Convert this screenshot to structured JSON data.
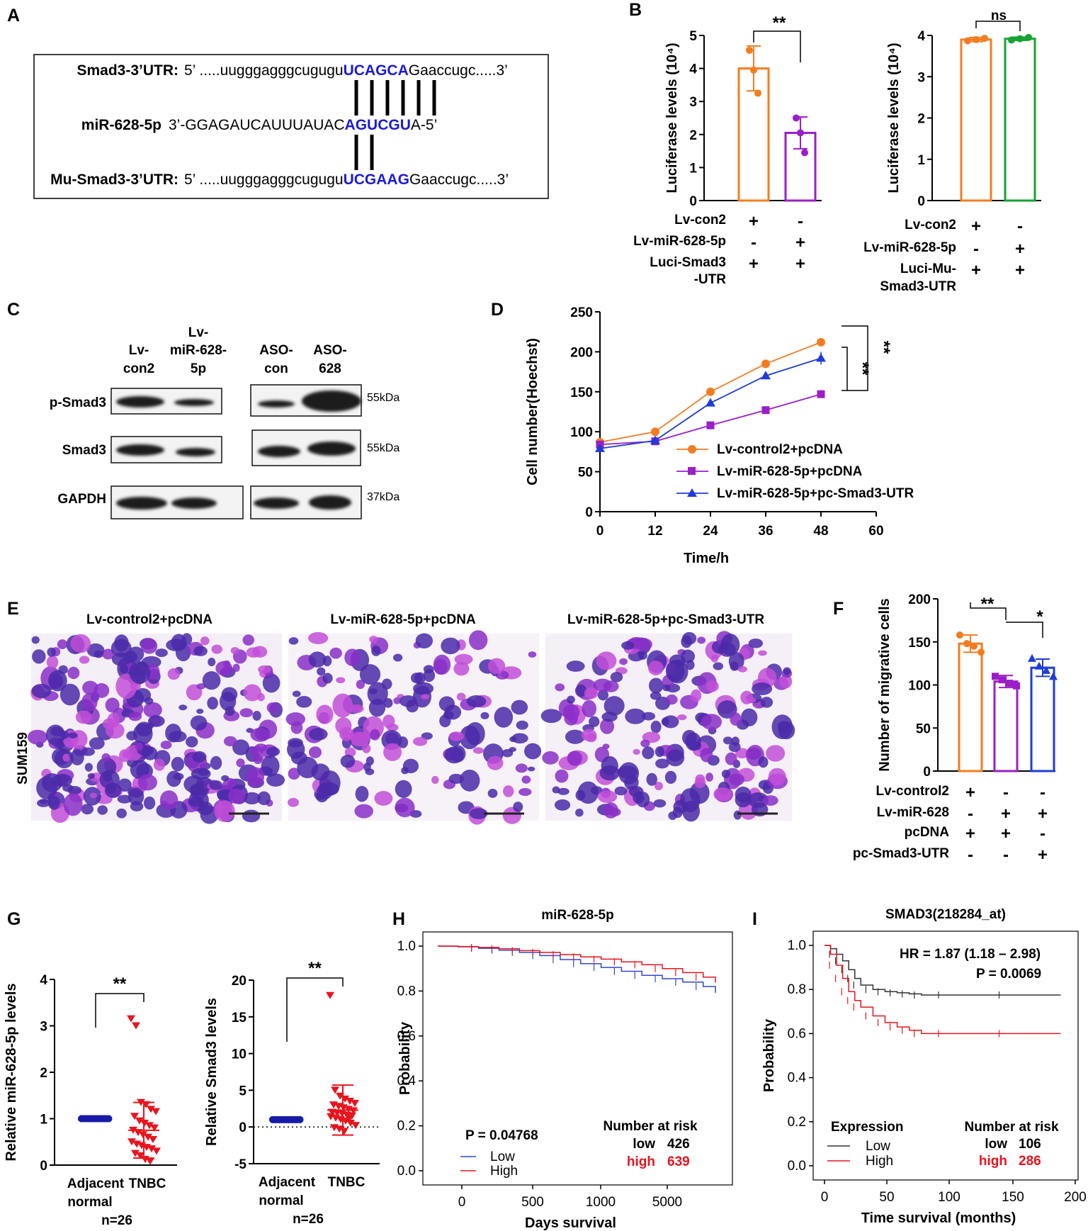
{
  "panels": [
    "A",
    "B",
    "C",
    "D",
    "E",
    "F",
    "G",
    "H",
    "I"
  ],
  "colors": {
    "orange": "#f47c20",
    "purple": "#9b1ec8",
    "green": "#16a332",
    "blue": "#1f3cd8",
    "red": "#e8141e",
    "navy": "#1a1adc",
    "gray": "#444444"
  },
  "panelA": {
    "rows": [
      {
        "label": "Smad3-3’UTR:",
        "left": "5’ .....uugggagggcugugu",
        "site": "UCAGCA",
        "right": "Gaaccugc.....3’"
      },
      {
        "label": "miR-628-5p",
        "left": "3’-GGAGAUCAUUUAUAC",
        "site": "AGUCGU",
        "right": "A-5’"
      },
      {
        "label": "Mu-Smad3-3’UTR:",
        "left": "5’ .....uugggagggcugugu",
        "site": "UCGAAG",
        "right": "Gaaccugc.....3’"
      }
    ]
  },
  "panelC": {
    "left_lanes": [
      [
        "Lv-",
        "con2"
      ],
      [
        "Lv-",
        "miR-628-",
        "5p"
      ]
    ],
    "right_lanes": [
      [
        "ASO-",
        "con"
      ],
      [
        "ASO-",
        "628"
      ]
    ],
    "rows": [
      "p-Smad3",
      "Smad3",
      "GAPDH"
    ],
    "kda": [
      "55kDa",
      "55kDa",
      "37kDa"
    ]
  },
  "panelE": {
    "titles": [
      "Lv-control2+pcDNA",
      "Lv-miR-628-5p+pcDNA",
      "Lv-miR-628-5p+pc-Smad3-UTR"
    ],
    "side_label": "SUM159"
  },
  "chart_data": [
    {
      "id": "B1",
      "type": "bar",
      "ylabel": "Luciferase levels (10⁴)",
      "ylim": [
        0,
        5
      ],
      "yticks": [
        "0",
        "1",
        "2",
        "3",
        "4",
        "5"
      ],
      "values": [
        4.0,
        2.05
      ],
      "errors": [
        0.68,
        0.48
      ],
      "points": [
        [
          4.55,
          3.95,
          3.25
        ],
        [
          2.5,
          2.05,
          1.45
        ]
      ],
      "colors": [
        "#f47c20",
        "#9b1ec8"
      ],
      "significance": "**",
      "conditions": [
        {
          "label": "Lv-con2",
          "signs": [
            "+",
            "-"
          ]
        },
        {
          "label": "Lv-miR-628-5p",
          "signs": [
            "-",
            "+"
          ]
        },
        {
          "label": "Luci-Smad3",
          "signs": [
            "+",
            "+"
          ]
        },
        {
          "label": "-UTR",
          "signs": [
            "",
            ""
          ]
        }
      ]
    },
    {
      "id": "B2",
      "type": "bar",
      "ylabel": "Luciferase levels (10⁴)",
      "ylim": [
        0,
        4
      ],
      "yticks": [
        "0",
        "1",
        "2",
        "3",
        "4"
      ],
      "values": [
        3.9,
        3.92
      ],
      "errors": [
        0.05,
        0.04
      ],
      "points": [
        [
          3.87,
          3.9,
          3.93
        ],
        [
          3.89,
          3.92,
          3.95
        ]
      ],
      "colors": [
        "#f47c20",
        "#16a332"
      ],
      "significance": "ns",
      "conditions": [
        {
          "label": "Lv-con2",
          "signs": [
            "+",
            "-"
          ]
        },
        {
          "label": "Lv-miR-628-5p",
          "signs": [
            "-",
            "+"
          ]
        },
        {
          "label": "Luci-Mu-",
          "signs": [
            "+",
            "+"
          ]
        },
        {
          "label": "Smad3-UTR",
          "signs": [
            "",
            ""
          ]
        }
      ]
    },
    {
      "id": "D",
      "type": "line",
      "xlabel": "Time/h",
      "ylabel": "Cell number(Hoechst)",
      "xlim": [
        0,
        60
      ],
      "ylim": [
        0,
        250
      ],
      "xticks": [
        "0",
        "12",
        "24",
        "36",
        "48",
        "60"
      ],
      "yticks": [
        "0",
        "50",
        "100",
        "150",
        "200",
        "250"
      ],
      "x": [
        0,
        12,
        24,
        36,
        48
      ],
      "series": [
        {
          "name": "Lv-control2+pcDNA",
          "values": [
            87,
            100,
            150,
            185,
            212
          ],
          "color": "#f47c20",
          "marker": "circle"
        },
        {
          "name": "Lv-miR-628-5p+pcDNA",
          "values": [
            84,
            88,
            108,
            127,
            147
          ],
          "color": "#9b1ec8",
          "marker": "square"
        },
        {
          "name": "Lv-miR-628-5p+pc-Smad3-UTR",
          "values": [
            79,
            89,
            136,
            170,
            192
          ],
          "color": "#1f3cd8",
          "marker": "triangle"
        }
      ],
      "significance": [
        "**",
        "**"
      ]
    },
    {
      "id": "F",
      "type": "bar",
      "ylabel": "Number of migrative cells",
      "ylim": [
        0,
        200
      ],
      "yticks": [
        "0",
        "50",
        "100",
        "150",
        "200"
      ],
      "values": [
        148,
        104,
        120
      ],
      "errors": [
        10,
        7,
        10
      ],
      "points": [
        [
          158,
          148,
          145,
          138
        ],
        [
          110,
          106,
          102,
          99
        ],
        [
          131,
          122,
          117,
          110
        ]
      ],
      "colors": [
        "#f47c20",
        "#9b1ec8",
        "#1f3cd8"
      ],
      "significance": [
        "**",
        "*"
      ],
      "conditions": [
        {
          "label": "Lv-control2",
          "signs": [
            "+",
            "-",
            "-"
          ]
        },
        {
          "label": "Lv-miR-628",
          "signs": [
            "-",
            "+",
            "+"
          ]
        },
        {
          "label": "pcDNA",
          "signs": [
            "+",
            "+",
            "-"
          ]
        },
        {
          "label": "pc-Smad3-UTR",
          "signs": [
            "-",
            "-",
            "+"
          ]
        }
      ]
    },
    {
      "id": "G1",
      "type": "scatter",
      "ylabel": "Relative miR-628-5p levels",
      "ylim": [
        0,
        4
      ],
      "yticks": [
        "0",
        "1",
        "2",
        "3",
        "4"
      ],
      "categories": [
        "Adjacent",
        "normal",
        "TNBC"
      ],
      "n_label": "n=26",
      "significance": "**",
      "adjacent_values": [
        1,
        1,
        1,
        1,
        1,
        1,
        1,
        1,
        1,
        1,
        1,
        1,
        1,
        1,
        1,
        1,
        1,
        1,
        1,
        1,
        1,
        1,
        1,
        1,
        1,
        1
      ],
      "tnbc_values": [
        3.15,
        3.0,
        1.35,
        1.3,
        1.2,
        1.15,
        1.05,
        0.95,
        0.9,
        0.85,
        0.8,
        0.75,
        0.7,
        0.65,
        0.6,
        0.55,
        0.5,
        0.45,
        0.42,
        0.38,
        0.35,
        0.3,
        0.25,
        0.2,
        0.12,
        0.08
      ],
      "tnbc_mean": 0.75,
      "tnbc_sd": 0.6
    },
    {
      "id": "G2",
      "type": "scatter",
      "ylabel": "Relative Smad3 levels",
      "ylim": [
        -5,
        20
      ],
      "yticks": [
        "-5",
        "0",
        "5",
        "10",
        "15",
        "20"
      ],
      "categories": [
        "Adjacent",
        "normal",
        "TNBC"
      ],
      "n_label": "n=26",
      "significance": "**",
      "adjacent_values": [
        1,
        1,
        1,
        1,
        1,
        1,
        1,
        1,
        1,
        1,
        1,
        1,
        1,
        1,
        1,
        1,
        1,
        1,
        1,
        1,
        1,
        1,
        1,
        1,
        1,
        1
      ],
      "tnbc_values": [
        17.9,
        5.0,
        4.2,
        3.8,
        3.5,
        3.2,
        3.0,
        2.8,
        2.6,
        2.4,
        2.2,
        2.0,
        1.9,
        1.8,
        1.6,
        1.5,
        1.4,
        1.2,
        1.0,
        0.8,
        0.5,
        0.2,
        -0.1,
        -0.3,
        -0.6,
        1.1
      ],
      "tnbc_mean": 2.3,
      "tnbc_sd": 3.4
    },
    {
      "id": "H",
      "type": "line",
      "title": "miR-628-5p",
      "xlabel": "Days survival",
      "ylabel": "Probability",
      "xlim": [
        0,
        6800
      ],
      "ylim": [
        0,
        1
      ],
      "xticks": [
        "0",
        "500",
        "1000",
        "5000"
      ],
      "yticks": [
        "0.0",
        "0.2",
        "0.4",
        "0.6",
        "0.8",
        "1.0"
      ],
      "x": [
        0,
        500,
        1000,
        1500,
        2000,
        2500,
        3000,
        3500,
        4000,
        4500,
        5000,
        5500,
        6000,
        6500,
        6800
      ],
      "series": [
        {
          "name": "Low",
          "values": [
            1.0,
            0.997,
            0.99,
            0.982,
            0.972,
            0.958,
            0.94,
            0.922,
            0.905,
            0.888,
            0.87,
            0.855,
            0.84,
            0.82,
            0.792
          ],
          "color": "#3246d2"
        },
        {
          "name": "High",
          "values": [
            1.0,
            0.998,
            0.994,
            0.988,
            0.98,
            0.972,
            0.962,
            0.952,
            0.942,
            0.93,
            0.917,
            0.9,
            0.882,
            0.862,
            0.838
          ],
          "color": "#e8141e"
        }
      ],
      "pvalue": "P = 0.04768",
      "risk_title": "Number at risk",
      "risk": [
        {
          "group": "low",
          "n": "426"
        },
        {
          "group": "high",
          "n": "639"
        }
      ]
    },
    {
      "id": "I",
      "type": "line",
      "title": "SMAD3(218284_at)",
      "xlabel": "Time survival  (months)",
      "ylabel": "Probability",
      "xlim": [
        0,
        200
      ],
      "ylim": [
        0,
        1
      ],
      "xticks": [
        "0",
        "50",
        "100",
        "150",
        "200"
      ],
      "yticks": [
        "0.0",
        "0.2",
        "0.4",
        "0.6",
        "0.8",
        "1.0"
      ],
      "x": [
        0,
        5,
        10,
        15,
        20,
        25,
        30,
        40,
        50,
        60,
        70,
        80,
        100,
        150,
        195
      ],
      "series": [
        {
          "name": "Low",
          "values": [
            1.0,
            0.985,
            0.96,
            0.93,
            0.89,
            0.85,
            0.82,
            0.8,
            0.79,
            0.785,
            0.78,
            0.775,
            0.775,
            0.775,
            0.775
          ],
          "color": "#333333"
        },
        {
          "name": "High",
          "values": [
            1.0,
            0.96,
            0.91,
            0.85,
            0.79,
            0.75,
            0.72,
            0.68,
            0.65,
            0.63,
            0.615,
            0.6,
            0.6,
            0.6,
            0.6
          ],
          "color": "#e8141e"
        }
      ],
      "hr": "HR = 1.87 (1.18 – 2.98)",
      "pvalue": "P = 0.0069",
      "legend_title": "Expression",
      "risk_title": "Number at risk",
      "risk": [
        {
          "group": "low",
          "n": "106"
        },
        {
          "group": "high",
          "n": "286"
        }
      ]
    }
  ]
}
